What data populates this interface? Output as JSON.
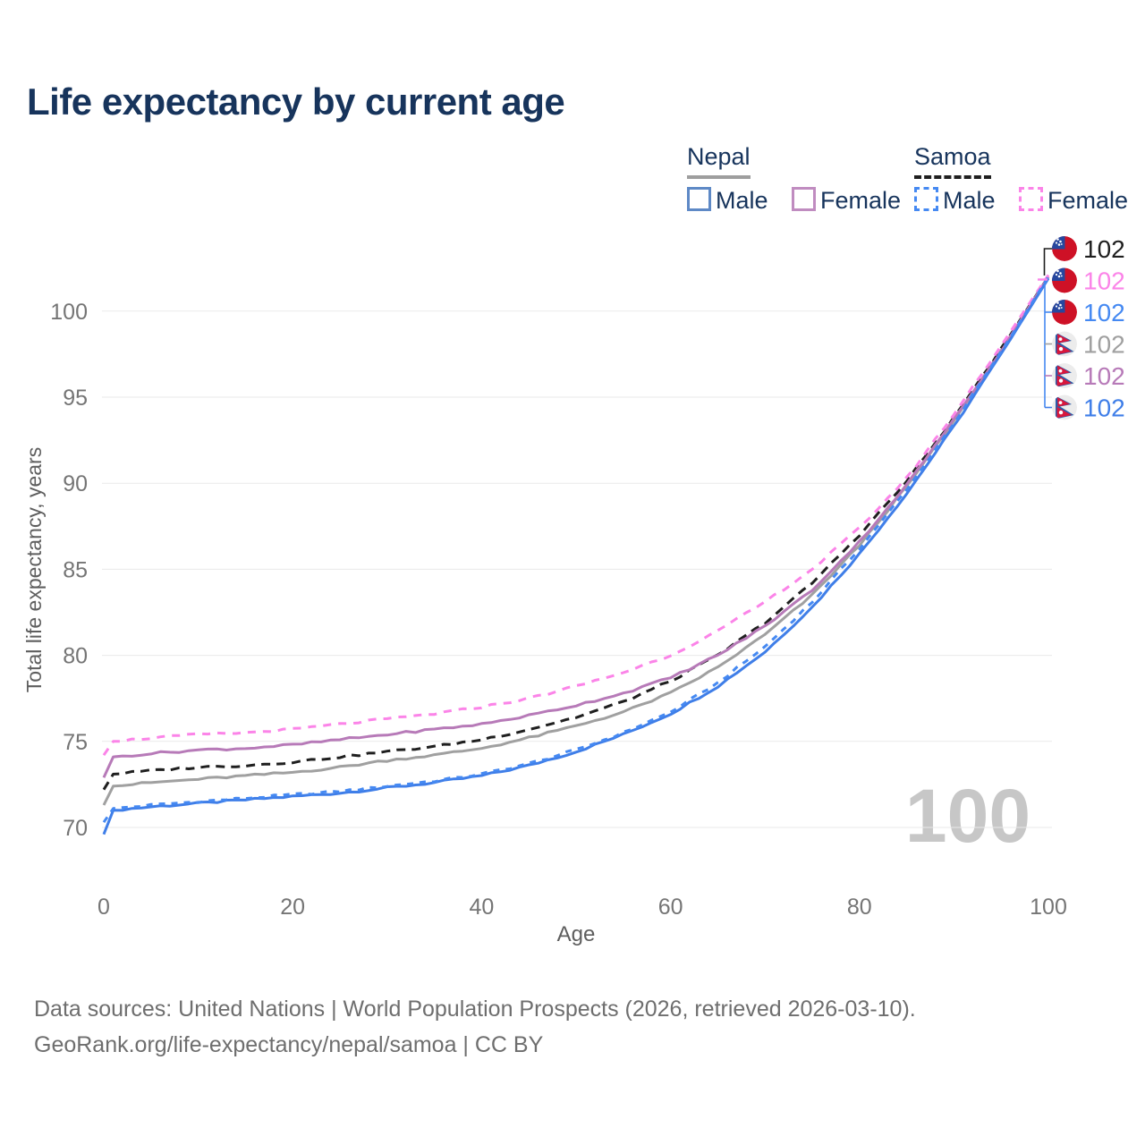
{
  "header": {
    "title": "Life expectancy by current age",
    "title_color": "#17345C"
  },
  "legend": {
    "text_color": "#17345C",
    "groups": [
      {
        "id": "nepal",
        "label": "Nepal",
        "swatch_style": "solid",
        "swatch_color": "#9E9E9E",
        "items": [
          {
            "id": "nepal-male",
            "label": "Male",
            "box_color": "#5E89C6",
            "box_style": "solid"
          },
          {
            "id": "nepal-female",
            "label": "Female",
            "box_color": "#C08CC0",
            "box_style": "solid"
          }
        ]
      },
      {
        "id": "samoa",
        "label": "Samoa",
        "swatch_style": "dashed",
        "swatch_color": "#1F1F1F",
        "items": [
          {
            "id": "samoa-male",
            "label": "Male",
            "box_color": "#4589F2",
            "box_style": "dashed"
          },
          {
            "id": "samoa-female",
            "label": "Female",
            "box_color": "#FB84E8",
            "box_style": "dashed"
          }
        ]
      }
    ]
  },
  "chart_data": {
    "type": "line",
    "title": "Life expectancy by current age",
    "xlabel": "Age",
    "ylabel": "Total life expectancy, years",
    "xlim": [
      0,
      100
    ],
    "ylim": [
      69,
      103
    ],
    "x_ticks": [
      0,
      20,
      40,
      60,
      80,
      100
    ],
    "y_ticks": [
      70,
      75,
      80,
      85,
      90,
      95,
      100
    ],
    "grid": "horizontal-only",
    "legend_position": "top-right",
    "watermark": "100",
    "watermark_color": "#C7C7C7",
    "gridline_color": "#EAEAEA",
    "tick_label_color": "#757575",
    "axis_title_color": "#5E5E5E",
    "ages": [
      0,
      1,
      5,
      10,
      15,
      20,
      25,
      30,
      35,
      40,
      45,
      50,
      55,
      60,
      65,
      70,
      75,
      80,
      85,
      90,
      95,
      100
    ],
    "series": [
      {
        "id": "nepal-male",
        "country": "Nepal",
        "sex": "Male",
        "color": "#3F7EE8",
        "dashed": false,
        "values": [
          69.6,
          71.0,
          71.2,
          71.4,
          71.6,
          71.8,
          72.0,
          72.3,
          72.6,
          73.0,
          73.6,
          74.4,
          75.4,
          76.6,
          78.2,
          80.2,
          82.8,
          85.9,
          89.4,
          93.3,
          97.5,
          101.9
        ],
        "end_label": "102"
      },
      {
        "id": "samoa-male",
        "country": "Samoa",
        "sex": "Male",
        "color": "#4589F2",
        "dashed": true,
        "values": [
          70.3,
          71.1,
          71.3,
          71.5,
          71.7,
          71.9,
          72.1,
          72.4,
          72.7,
          73.1,
          73.7,
          74.5,
          75.5,
          76.7,
          78.4,
          80.5,
          83.1,
          86.2,
          89.6,
          93.5,
          97.6,
          102.0
        ],
        "end_label": "102"
      },
      {
        "id": "nepal-total",
        "country": "Nepal",
        "sex": "Both",
        "color": "#A0A0A0",
        "dashed": false,
        "values": [
          71.3,
          72.4,
          72.6,
          72.8,
          73.0,
          73.2,
          73.5,
          73.9,
          74.2,
          74.6,
          75.2,
          75.9,
          76.7,
          77.8,
          79.3,
          81.2,
          83.5,
          86.4,
          89.8,
          93.6,
          97.7,
          102.0
        ],
        "end_label": "102"
      },
      {
        "id": "samoa-total",
        "country": "Samoa",
        "sex": "Both",
        "color": "#1F1F1F",
        "dashed": true,
        "values": [
          72.2,
          73.1,
          73.3,
          73.5,
          73.6,
          73.8,
          74.1,
          74.4,
          74.7,
          75.1,
          75.7,
          76.4,
          77.3,
          78.5,
          80.0,
          81.9,
          84.2,
          87.0,
          90.1,
          93.8,
          97.8,
          102.0
        ],
        "end_label": "102"
      },
      {
        "id": "nepal-female",
        "country": "Nepal",
        "sex": "Female",
        "color": "#B77AB8",
        "dashed": false,
        "values": [
          72.9,
          74.1,
          74.3,
          74.5,
          74.6,
          74.8,
          75.1,
          75.4,
          75.7,
          76.0,
          76.5,
          77.1,
          77.8,
          78.7,
          80.0,
          81.7,
          83.8,
          86.6,
          89.9,
          93.7,
          97.7,
          102.0
        ],
        "end_label": "102"
      },
      {
        "id": "samoa-female",
        "country": "Samoa",
        "sex": "Female",
        "color": "#FB84E8",
        "dashed": true,
        "values": [
          74.2,
          75.0,
          75.2,
          75.4,
          75.5,
          75.7,
          76.0,
          76.3,
          76.6,
          77.0,
          77.5,
          78.2,
          79.0,
          80.0,
          81.4,
          83.1,
          85.0,
          87.4,
          90.3,
          94.0,
          98.0,
          102.1
        ],
        "end_label": "102"
      }
    ],
    "end_labels_order": [
      "samoa-total",
      "samoa-female",
      "samoa-male",
      "nepal-total",
      "nepal-female",
      "nepal-male"
    ]
  },
  "icons": {
    "samoa_flag": {
      "field": "#CE1126",
      "canton": "#26479E",
      "stars": "#FFFFFF"
    },
    "nepal_flag": {
      "base": "#ECECEC",
      "border": "#2B5CA8",
      "pennant": "#D8173C",
      "symbols": "#FFFFFF"
    }
  },
  "footer": {
    "color": "#6E6E6E",
    "lines": [
      "Data sources: United Nations | World Population Prospects (2026, retrieved 2026-03-10).",
      "GeoRank.org/life-expectancy/nepal/samoa | CC BY"
    ]
  }
}
